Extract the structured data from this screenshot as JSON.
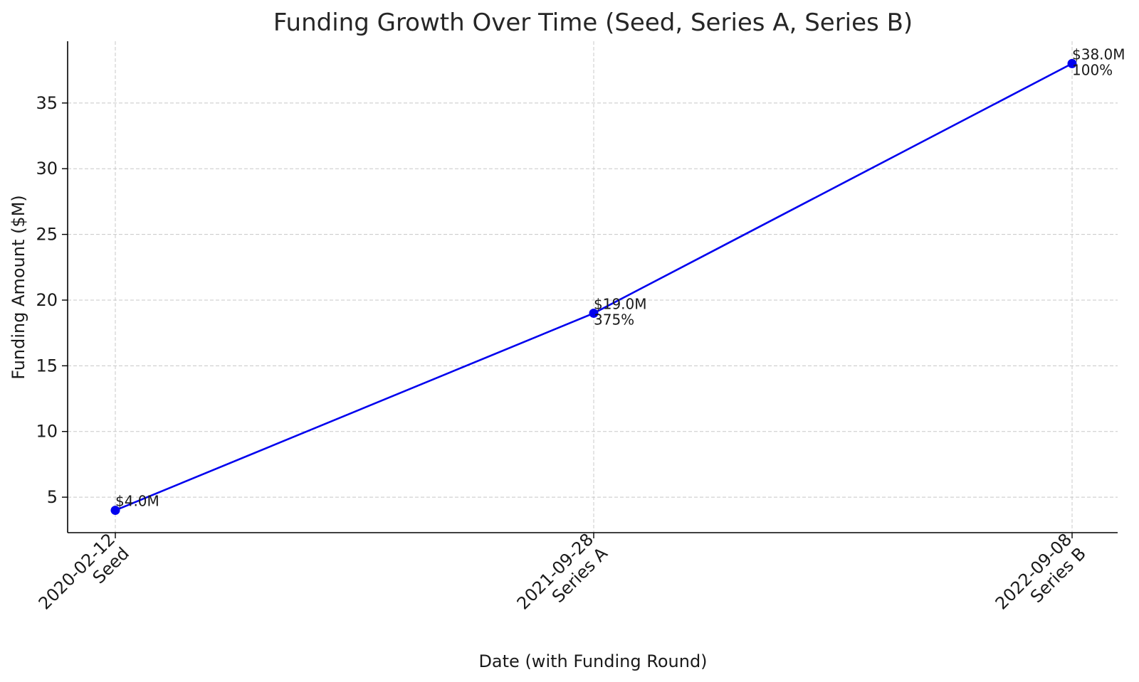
{
  "chart_data": {
    "type": "line",
    "title": "Funding Growth Over Time (Seed, Series A, Series B)",
    "xlabel": "Date (with Funding Round)",
    "ylabel": "Funding Amount ($M)",
    "x_dates": [
      "2020-02-12",
      "2021-09-28",
      "2022-09-08"
    ],
    "x_tick_labels": [
      [
        "2020-02-12",
        "Seed"
      ],
      [
        "2021-09-28",
        "Series A"
      ],
      [
        "2022-09-08",
        "Series B"
      ]
    ],
    "y_ticks": [
      5,
      10,
      15,
      20,
      25,
      30,
      35
    ],
    "ylim": [
      2.3,
      39.7
    ],
    "grid": true,
    "series": [
      {
        "values": [
          4.0,
          19.0,
          38.0
        ],
        "color": "#0000ee",
        "marker": "circle"
      }
    ],
    "annotations": [
      {
        "amount": "$4.0M",
        "growth": ""
      },
      {
        "amount": "$19.0M",
        "growth": "375%"
      },
      {
        "amount": "$38.0M",
        "growth": "100%"
      }
    ]
  }
}
